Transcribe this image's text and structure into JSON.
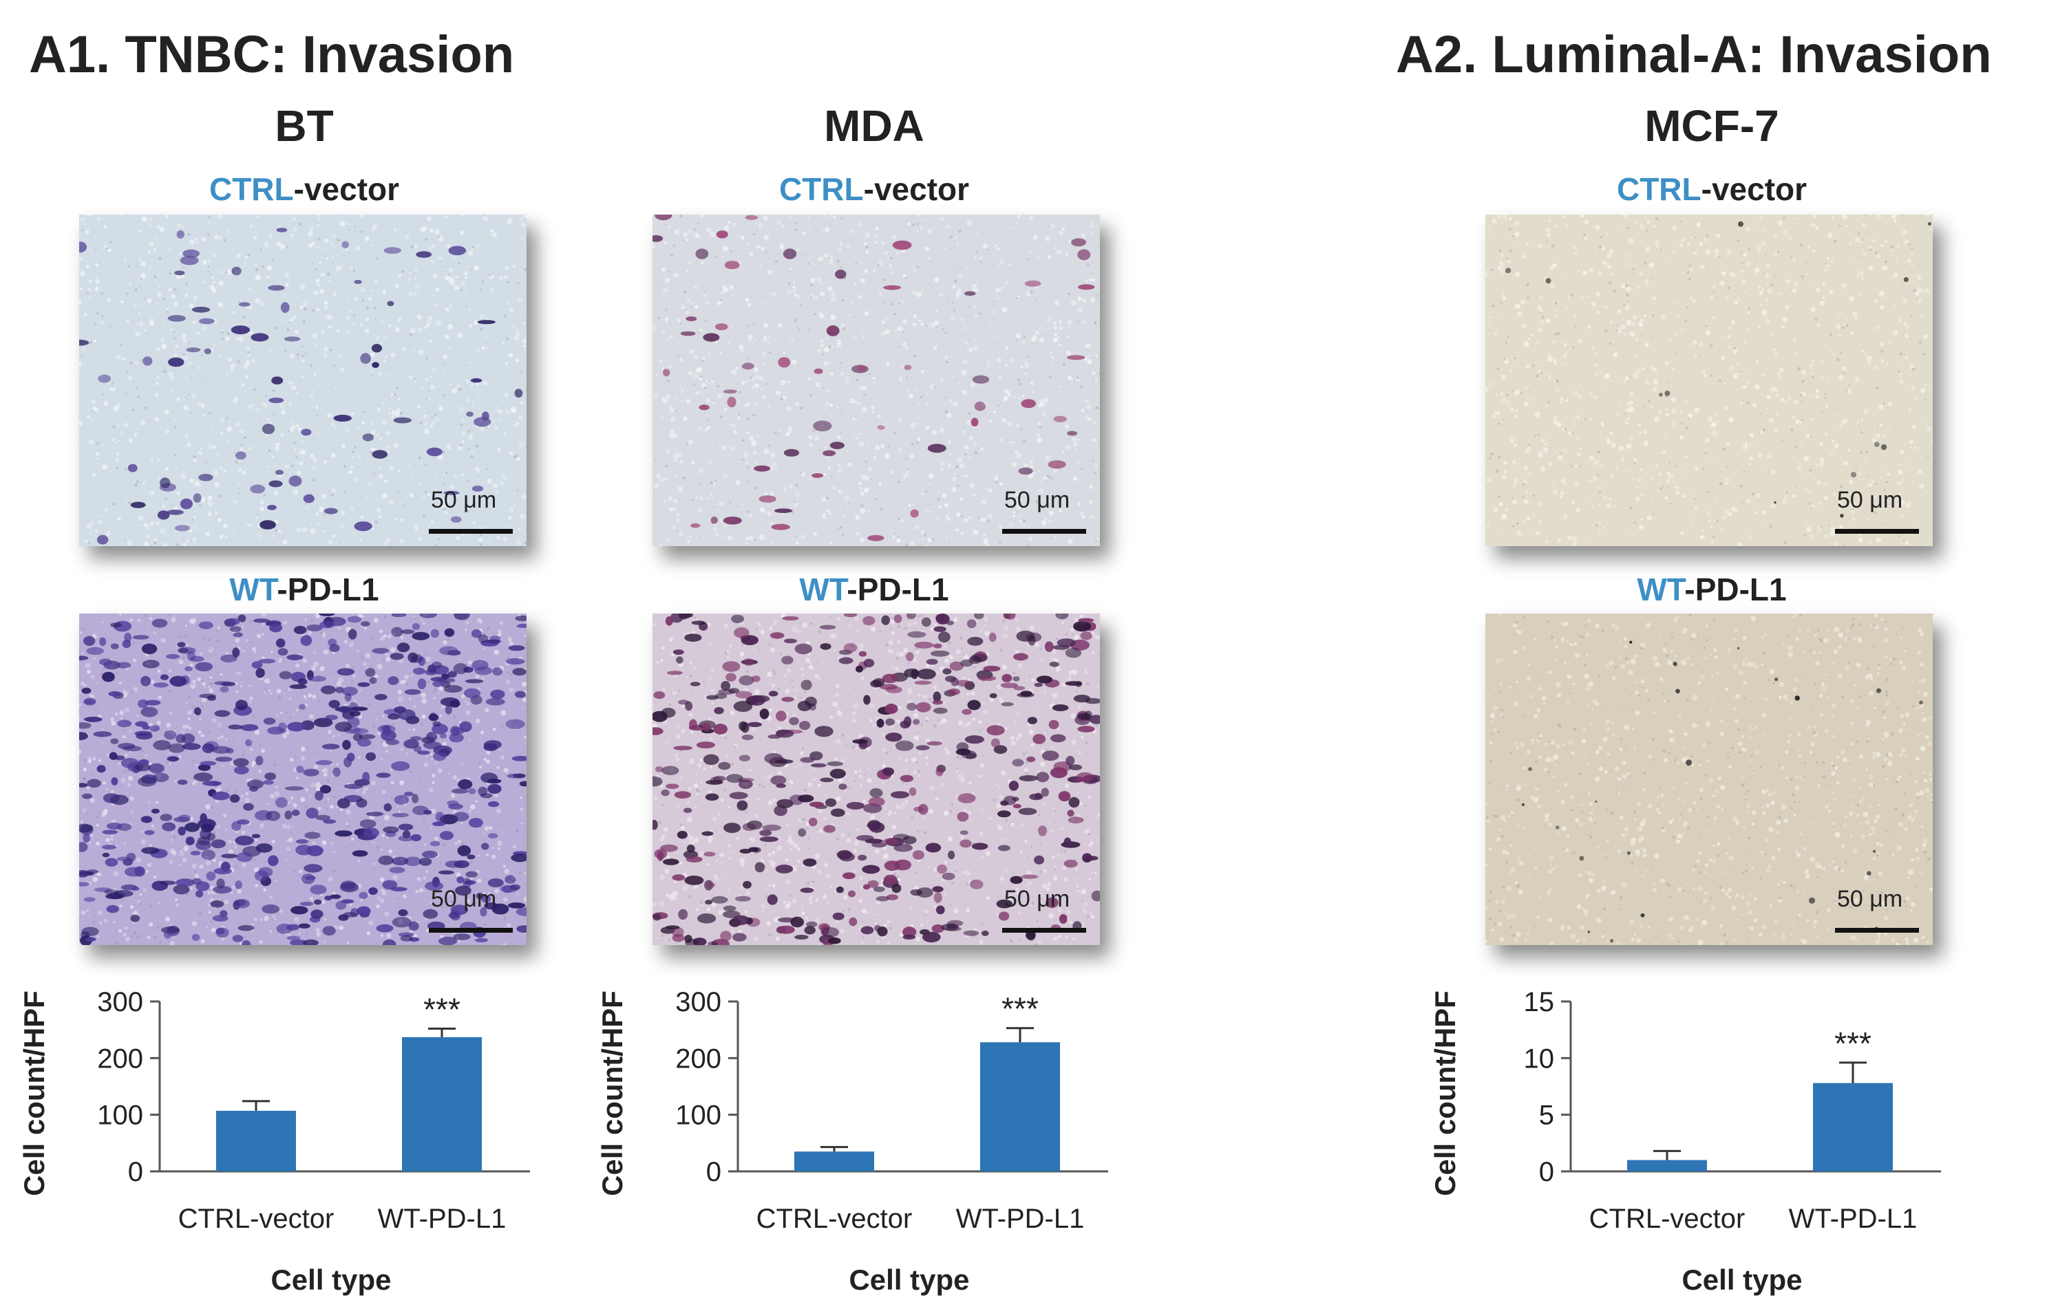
{
  "panels": [
    {
      "title": "A1. TNBC: Invasion",
      "cell_lines": [
        {
          "name": "BT",
          "images": [
            {
              "label_hl": "CTRL",
              "label_rest": "-vector",
              "scale_label": "50 μm",
              "stain": "violet-sparse"
            },
            {
              "label_hl": "WT",
              "label_rest": "-PD-L1",
              "scale_label": "50 μm",
              "stain": "violet-dense"
            }
          ]
        },
        {
          "name": "MDA",
          "images": [
            {
              "label_hl": "CTRL",
              "label_rest": "-vector",
              "scale_label": "50 μm",
              "stain": "pink-sparse"
            },
            {
              "label_hl": "WT",
              "label_rest": "-PD-L1",
              "scale_label": "50 μm",
              "stain": "pink-dense"
            }
          ]
        }
      ]
    },
    {
      "title": "A2. Luminal-A: Invasion",
      "cell_lines": [
        {
          "name": "MCF-7",
          "images": [
            {
              "label_hl": "CTRL",
              "label_rest": "-vector",
              "scale_label": "50 μm",
              "stain": "beige-sparse"
            },
            {
              "label_hl": "WT",
              "label_rest": "-PD-L1",
              "scale_label": "50 μm",
              "stain": "beige-dense"
            }
          ]
        }
      ]
    }
  ],
  "colors": {
    "bar": "#2e75b6",
    "label_highlight": "#3d8fc6",
    "axis": "#555555"
  },
  "chart_data": [
    {
      "type": "bar",
      "cell_line": "BT",
      "categories": [
        "CTRL-vector",
        "WT-PD-L1"
      ],
      "values": [
        107,
        237
      ],
      "errors": [
        17,
        15
      ],
      "significance": [
        "",
        "***"
      ],
      "xlabel": "Cell  type",
      "ylabel": "Cell count/HPF",
      "ylim": [
        0,
        300
      ],
      "yticks": [
        0,
        100,
        200,
        300
      ]
    },
    {
      "type": "bar",
      "cell_line": "MDA",
      "categories": [
        "CTRL-vector",
        "WT-PD-L1"
      ],
      "values": [
        35,
        228
      ],
      "errors": [
        8,
        25
      ],
      "significance": [
        "",
        "***"
      ],
      "xlabel": "Cell  type",
      "ylabel": "Cell count/HPF",
      "ylim": [
        0,
        300
      ],
      "yticks": [
        0,
        100,
        200,
        300
      ]
    },
    {
      "type": "bar",
      "cell_line": "MCF-7",
      "categories": [
        "CTRL-vector",
        "WT-PD-L1"
      ],
      "values": [
        1,
        7.8
      ],
      "errors": [
        0.8,
        1.8
      ],
      "significance": [
        "",
        "***"
      ],
      "xlabel": "Cell type",
      "ylabel": "Cell count/HPF",
      "ylim": [
        0,
        15
      ],
      "yticks": [
        0,
        5,
        10,
        15
      ]
    }
  ]
}
